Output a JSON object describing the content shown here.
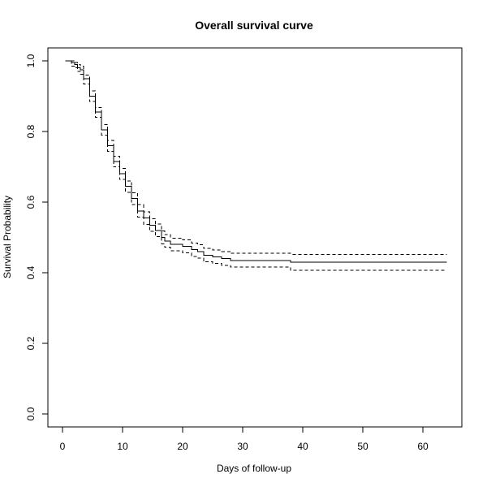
{
  "chart_data": {
    "type": "line",
    "title": "Overall survival curve",
    "xlabel": "Days of follow-up",
    "ylabel": "Survival Probability",
    "xlim": [
      0,
      64
    ],
    "ylim": [
      0,
      1
    ],
    "x_ticks": [
      "0",
      "10",
      "20",
      "30",
      "40",
      "50",
      "60"
    ],
    "y_ticks": [
      "0.0",
      "0.2",
      "0.4",
      "0.6",
      "0.8",
      "1.0"
    ],
    "step": true,
    "grid": false,
    "colors": {
      "line": "#000000",
      "axis": "#000000",
      "background": "#ffffff"
    },
    "series": [
      {
        "role": "estimate",
        "line_style": "solid",
        "points": [
          [
            0.5,
            1.0
          ],
          [
            1.5,
            0.995
          ],
          [
            2.0,
            0.99
          ],
          [
            2.5,
            0.98
          ],
          [
            3.0,
            0.975
          ],
          [
            3.5,
            0.95
          ],
          [
            4.5,
            0.9
          ],
          [
            5.5,
            0.855
          ],
          [
            6.5,
            0.805
          ],
          [
            7.5,
            0.76
          ],
          [
            8.5,
            0.715
          ],
          [
            9.5,
            0.68
          ],
          [
            10.5,
            0.645
          ],
          [
            11.5,
            0.61
          ],
          [
            12.5,
            0.575
          ],
          [
            13.5,
            0.555
          ],
          [
            14.5,
            0.535
          ],
          [
            15.5,
            0.52
          ],
          [
            16.5,
            0.5
          ],
          [
            17.0,
            0.49
          ],
          [
            18.0,
            0.48
          ],
          [
            20.0,
            0.475
          ],
          [
            21.5,
            0.465
          ],
          [
            22.5,
            0.46
          ],
          [
            23.5,
            0.45
          ],
          [
            25.0,
            0.445
          ],
          [
            26.5,
            0.44
          ],
          [
            28.0,
            0.435
          ],
          [
            38.0,
            0.43
          ],
          [
            64.0,
            0.43
          ]
        ]
      },
      {
        "role": "upper-ci",
        "line_style": "dashed",
        "points": [
          [
            0.5,
            1.0
          ],
          [
            1.5,
            1.0
          ],
          [
            2.0,
            0.995
          ],
          [
            2.5,
            0.99
          ],
          [
            3.0,
            0.985
          ],
          [
            3.5,
            0.96
          ],
          [
            4.5,
            0.915
          ],
          [
            5.5,
            0.868
          ],
          [
            6.5,
            0.82
          ],
          [
            7.5,
            0.775
          ],
          [
            8.5,
            0.73
          ],
          [
            9.5,
            0.695
          ],
          [
            10.5,
            0.66
          ],
          [
            11.5,
            0.626
          ],
          [
            12.5,
            0.593
          ],
          [
            13.5,
            0.573
          ],
          [
            14.5,
            0.553
          ],
          [
            15.5,
            0.538
          ],
          [
            16.5,
            0.518
          ],
          [
            17.0,
            0.508
          ],
          [
            18.0,
            0.498
          ],
          [
            20.0,
            0.493
          ],
          [
            21.5,
            0.484
          ],
          [
            22.5,
            0.479
          ],
          [
            23.5,
            0.469
          ],
          [
            25.0,
            0.464
          ],
          [
            26.5,
            0.46
          ],
          [
            28.0,
            0.455
          ],
          [
            38.0,
            0.452
          ],
          [
            64.0,
            0.452
          ]
        ]
      },
      {
        "role": "lower-ci",
        "line_style": "dashed",
        "points": [
          [
            0.5,
            1.0
          ],
          [
            1.5,
            0.985
          ],
          [
            2.0,
            0.98
          ],
          [
            2.5,
            0.97
          ],
          [
            3.0,
            0.962
          ],
          [
            3.5,
            0.935
          ],
          [
            4.5,
            0.885
          ],
          [
            5.5,
            0.84
          ],
          [
            6.5,
            0.79
          ],
          [
            7.5,
            0.744
          ],
          [
            8.5,
            0.7
          ],
          [
            9.5,
            0.664
          ],
          [
            10.5,
            0.628
          ],
          [
            11.5,
            0.593
          ],
          [
            12.5,
            0.558
          ],
          [
            13.5,
            0.537
          ],
          [
            14.5,
            0.517
          ],
          [
            15.5,
            0.502
          ],
          [
            16.5,
            0.482
          ],
          [
            17.0,
            0.472
          ],
          [
            18.0,
            0.462
          ],
          [
            20.0,
            0.456
          ],
          [
            21.5,
            0.446
          ],
          [
            22.5,
            0.441
          ],
          [
            23.5,
            0.431
          ],
          [
            25.0,
            0.426
          ],
          [
            26.5,
            0.421
          ],
          [
            28.0,
            0.416
          ],
          [
            38.0,
            0.407
          ],
          [
            64.0,
            0.407
          ]
        ]
      }
    ]
  }
}
